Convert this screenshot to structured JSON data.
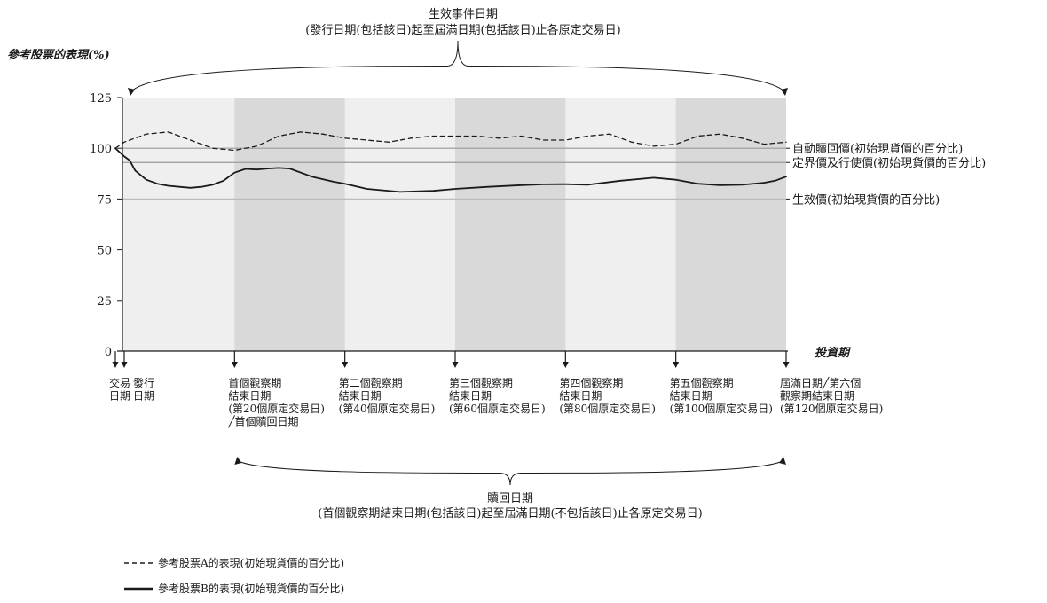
{
  "chart_data": {
    "type": "line",
    "ylabel": "參考股票的表現(%)",
    "xlabel": "投資期",
    "ylim": [
      0,
      125
    ],
    "yticks": [
      0,
      25,
      50,
      75,
      100,
      125
    ],
    "xlim": [
      -4,
      120
    ],
    "observation_bands": [
      [
        20,
        40
      ],
      [
        60,
        80
      ],
      [
        100,
        120
      ]
    ],
    "reference_lines": [
      {
        "label": "自動贖回價(初始現貨價的百分比)",
        "value": 100,
        "color": "#999999"
      },
      {
        "label": "定界價及行使價(初始現貨價的百分比)",
        "value": 93,
        "color": "#999999"
      },
      {
        "label": "生效價(初始現貨價的百分比)",
        "value": 75,
        "color": "#bbbbbb"
      }
    ],
    "top_brace": {
      "title": "生效事件日期",
      "subtitle": "(發行日期(包括該日)起至屆滿日期(包括該日)止各原定交易日)"
    },
    "bottom_brace": {
      "title": "贖回日期",
      "subtitle": "(首個觀察期結束日期(包括該日)起至屆滿日期(不包括該日)止各原定交易日)"
    },
    "markers": [
      {
        "x": -4,
        "lines": [
          "交易",
          "日期"
        ]
      },
      {
        "x": 0,
        "lines": [
          "發行",
          "日期"
        ]
      },
      {
        "x": 20,
        "lines": [
          "首個觀察期",
          "結束日期",
          "(第20個原定交易日)",
          "╱首個贖回日期"
        ]
      },
      {
        "x": 40,
        "lines": [
          "第二個觀察期",
          "結束日期",
          "(第40個原定交易日)"
        ]
      },
      {
        "x": 60,
        "lines": [
          "第三個觀察期",
          "結束日期",
          "(第60個原定交易日)"
        ]
      },
      {
        "x": 80,
        "lines": [
          "第四個觀察期",
          "結束日期",
          "(第80個原定交易日)"
        ]
      },
      {
        "x": 100,
        "lines": [
          "第五個觀察期",
          "結束日期",
          "(第100個原定交易日)"
        ]
      },
      {
        "x": 120,
        "lines": [
          "屆滿日期╱第六個",
          "觀察期結束日期",
          "(第120個原定交易日)"
        ]
      }
    ],
    "series": [
      {
        "name": "參考股票A的表現(初始現貨價的百分比)",
        "dash": "dashed",
        "x": [
          -4,
          0,
          4,
          8,
          12,
          16,
          20,
          24,
          28,
          32,
          36,
          40,
          44,
          48,
          52,
          56,
          60,
          64,
          68,
          72,
          76,
          80,
          84,
          88,
          92,
          96,
          100,
          104,
          108,
          112,
          116,
          120
        ],
        "y": [
          100,
          103,
          107,
          108,
          104,
          100,
          99,
          101,
          106,
          108,
          107,
          105,
          104,
          103,
          105,
          106,
          106,
          106,
          105,
          106,
          104,
          104,
          106,
          107,
          103,
          101,
          102,
          106,
          107,
          105,
          102,
          103
        ]
      },
      {
        "name": "參考股票B的表現(初始現貨價的百分比)",
        "dash": "solid",
        "x": [
          -4,
          -2,
          0,
          1,
          2,
          4,
          6,
          8,
          10,
          12,
          14,
          16,
          18,
          20,
          22,
          24,
          26,
          28,
          30,
          34,
          38,
          40,
          44,
          50,
          56,
          60,
          66,
          72,
          76,
          80,
          84,
          90,
          96,
          100,
          104,
          108,
          112,
          116,
          118,
          120
        ],
        "y": [
          100,
          98,
          96,
          94,
          89,
          84.5,
          82.5,
          81.5,
          81,
          80.5,
          81,
          82,
          84,
          88,
          89.8,
          89.5,
          90,
          90.3,
          90,
          86,
          83.5,
          82.5,
          80,
          78.5,
          79,
          80,
          81,
          81.8,
          82.2,
          82.3,
          82,
          84,
          85.5,
          84.5,
          82.5,
          81.8,
          82,
          83,
          84,
          86
        ]
      }
    ]
  }
}
